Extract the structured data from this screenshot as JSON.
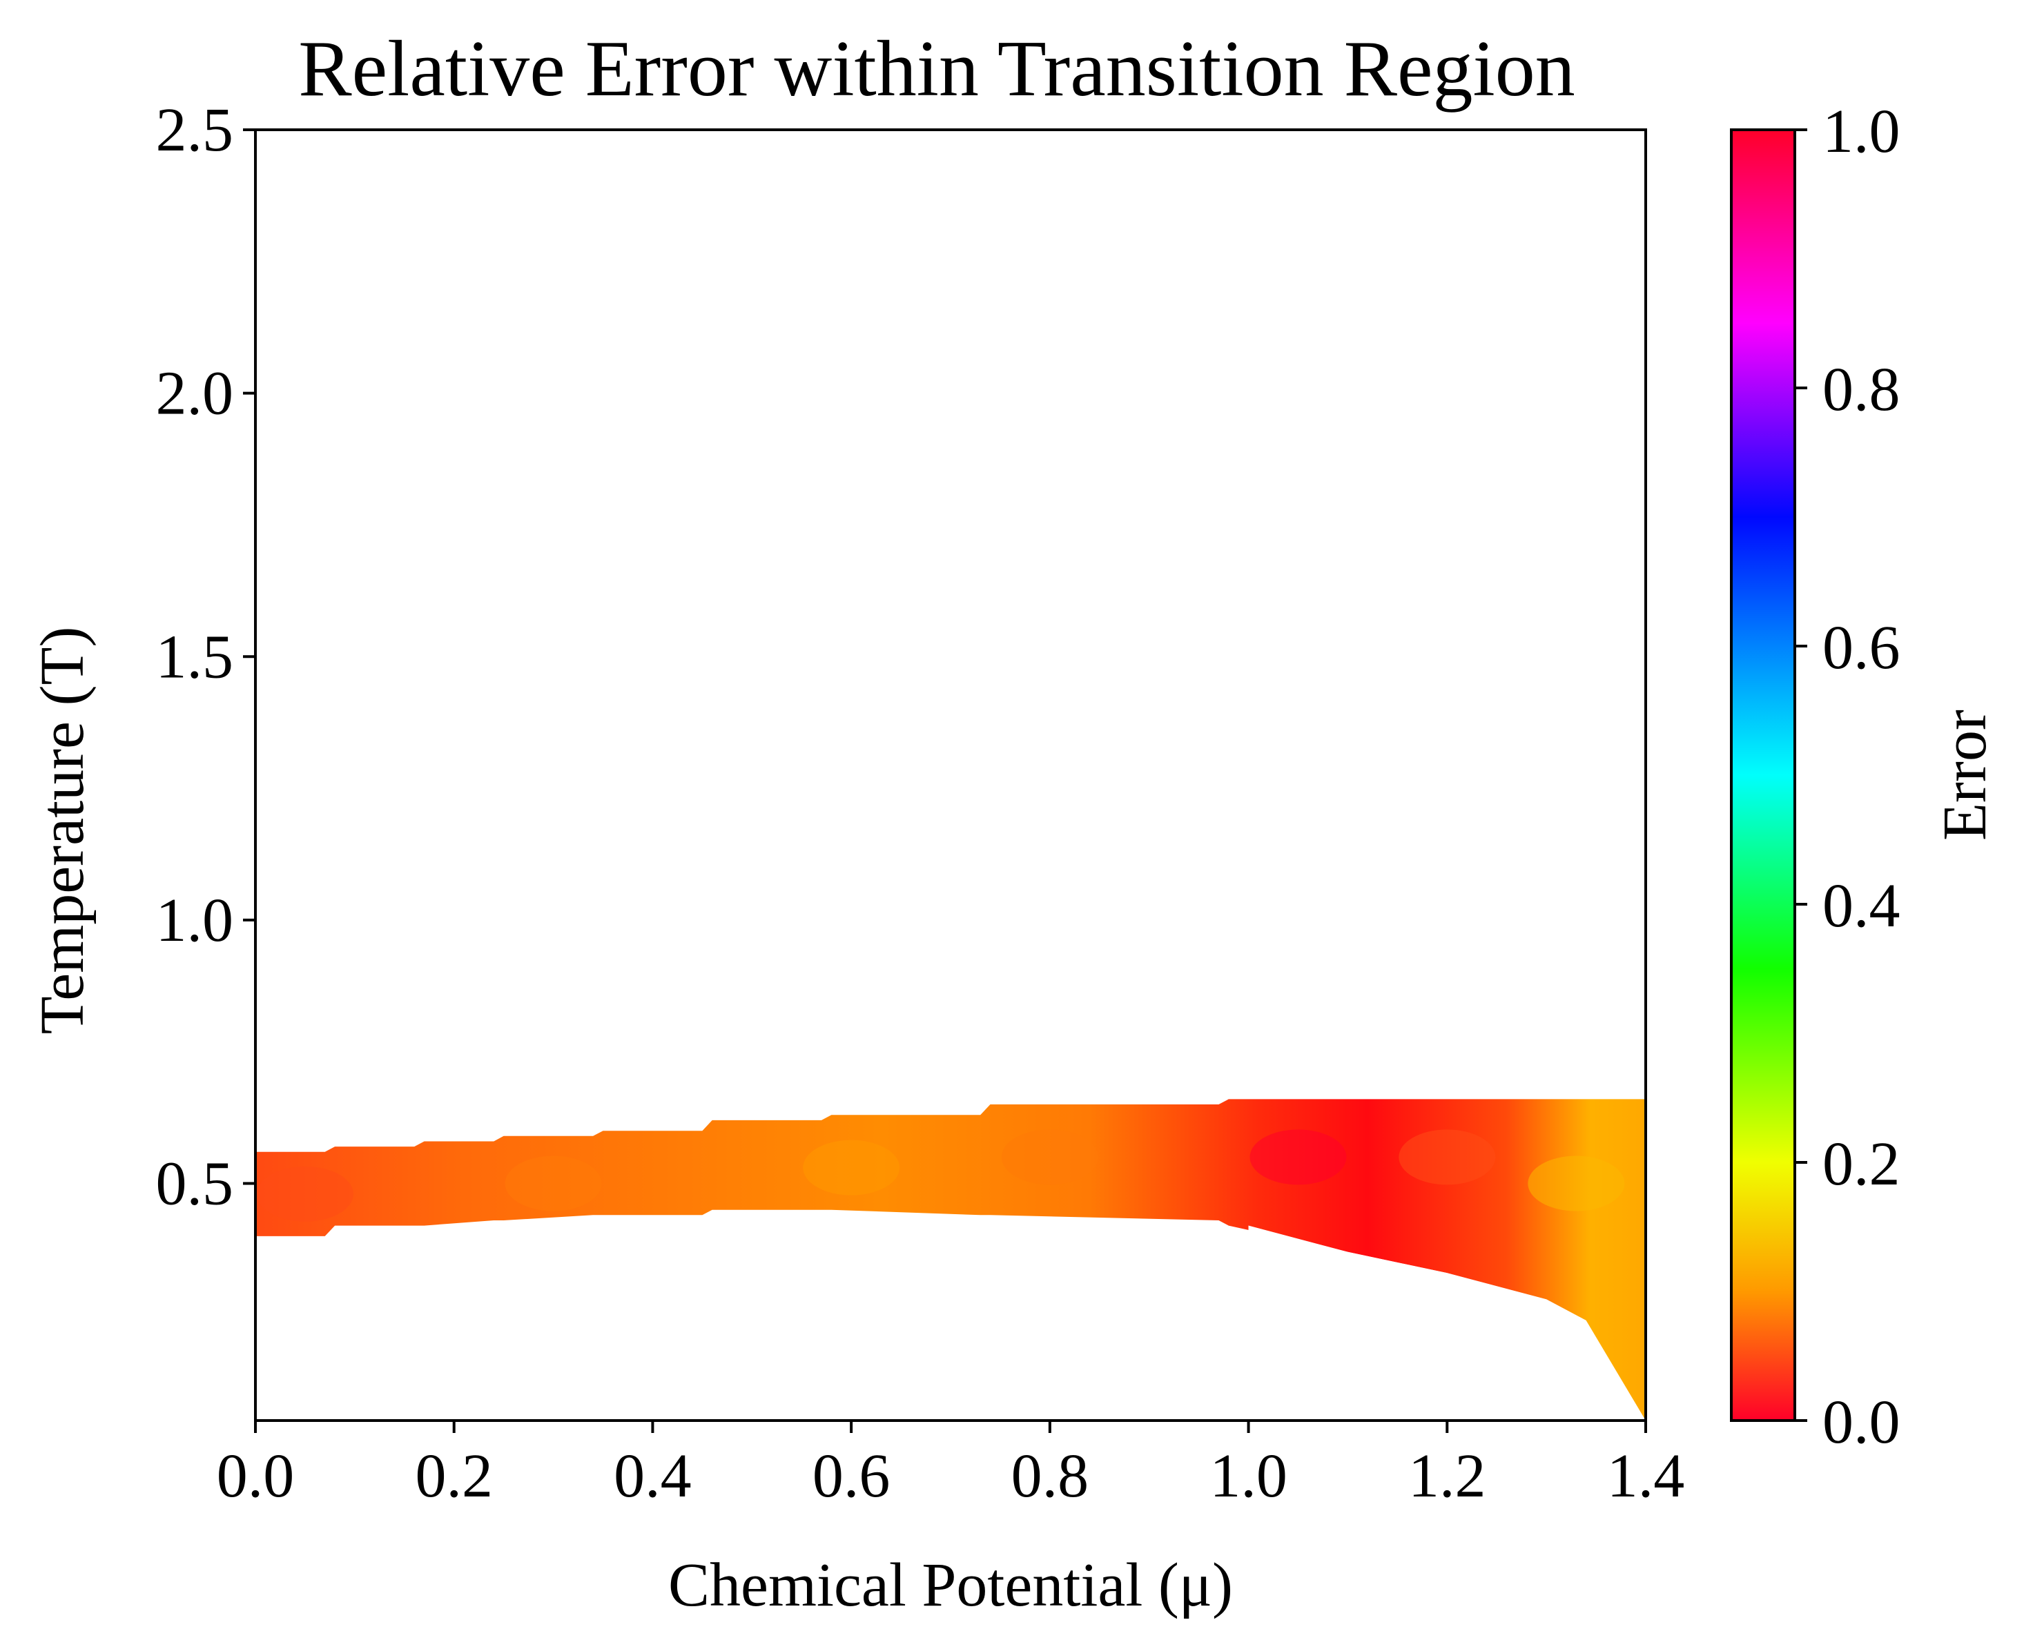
{
  "chart_data": {
    "type": "heatmap",
    "title": "Relative Error within Transition Region",
    "xlabel": "Chemical Potential (μ)",
    "ylabel": "Temperature (T)",
    "xlim": [
      0.0,
      1.4
    ],
    "ylim": [
      0.05,
      2.5
    ],
    "x_ticks": [
      0.0,
      0.2,
      0.4,
      0.6,
      0.8,
      1.0,
      1.2,
      1.4
    ],
    "x_tick_labels": [
      "0.0",
      "0.2",
      "0.4",
      "0.6",
      "0.8",
      "1.0",
      "1.2",
      "1.4"
    ],
    "y_ticks": [
      0.5,
      1.0,
      1.5,
      2.0,
      2.5
    ],
    "y_tick_labels": [
      "0.5",
      "1.0",
      "1.5",
      "2.0",
      "2.5"
    ],
    "colorbar": {
      "label": "Error",
      "range": [
        0.0,
        1.0
      ],
      "ticks": [
        0.0,
        0.2,
        0.4,
        0.6,
        0.8,
        1.0
      ],
      "tick_labels": [
        "0.0",
        "0.2",
        "0.4",
        "0.6",
        "0.8",
        "1.0"
      ],
      "colormap": "gist_rainbow_r",
      "colormap_stops": [
        {
          "value": 0.0,
          "color": "#ff0029"
        },
        {
          "value": 0.1,
          "color": "#ff9900"
        },
        {
          "value": 0.2,
          "color": "#f0ff00"
        },
        {
          "value": 0.35,
          "color": "#11ff00"
        },
        {
          "value": 0.5,
          "color": "#00fffc"
        },
        {
          "value": 0.7,
          "color": "#0008ff"
        },
        {
          "value": 0.85,
          "color": "#ff00ff"
        },
        {
          "value": 1.0,
          "color": "#ff0029"
        }
      ]
    },
    "region_boundary": {
      "mu": [
        0.0,
        0.07,
        0.08,
        0.16,
        0.17,
        0.24,
        0.25,
        0.34,
        0.35,
        0.45,
        0.46,
        0.57,
        0.58,
        0.73,
        0.74,
        0.97,
        0.98,
        1.1,
        1.2,
        1.3,
        1.34,
        1.4
      ],
      "upper_T": [
        0.56,
        0.56,
        0.57,
        0.57,
        0.58,
        0.58,
        0.59,
        0.59,
        0.6,
        0.6,
        0.62,
        0.62,
        0.63,
        0.63,
        0.65,
        0.65,
        0.66,
        0.66,
        0.66,
        0.66,
        0.66,
        0.66
      ],
      "lower_T": [
        0.4,
        0.4,
        0.42,
        0.42,
        0.42,
        0.43,
        0.43,
        0.44,
        0.44,
        0.44,
        0.45,
        0.45,
        0.45,
        0.44,
        0.44,
        0.43,
        0.42,
        0.37,
        0.33,
        0.26,
        0.24,
        0.05
      ],
      "lower_nose_mu": [
        1.1,
        1.2,
        1.3,
        1.34,
        1.3,
        1.2,
        1.1
      ],
      "lower_nose_T": [
        0.37,
        0.33,
        0.28,
        0.24,
        0.18,
        0.1,
        0.05
      ]
    },
    "error_samples": [
      {
        "mu": 0.05,
        "T": 0.48,
        "error": 0.05
      },
      {
        "mu": 0.3,
        "T": 0.5,
        "error": 0.08
      },
      {
        "mu": 0.6,
        "T": 0.53,
        "error": 0.1
      },
      {
        "mu": 0.8,
        "T": 0.55,
        "error": 0.08
      },
      {
        "mu": 1.05,
        "T": 0.55,
        "error": 0.0
      },
      {
        "mu": 1.2,
        "T": 0.55,
        "error": 0.05
      },
      {
        "mu": 1.33,
        "T": 0.5,
        "error": 0.13
      },
      {
        "mu": 1.3,
        "T": 0.15,
        "error": 0.02
      },
      {
        "mu": 1.2,
        "T": 0.08,
        "error": 0.12
      },
      {
        "mu": 1.12,
        "T": 0.06,
        "error": 0.2
      }
    ]
  }
}
